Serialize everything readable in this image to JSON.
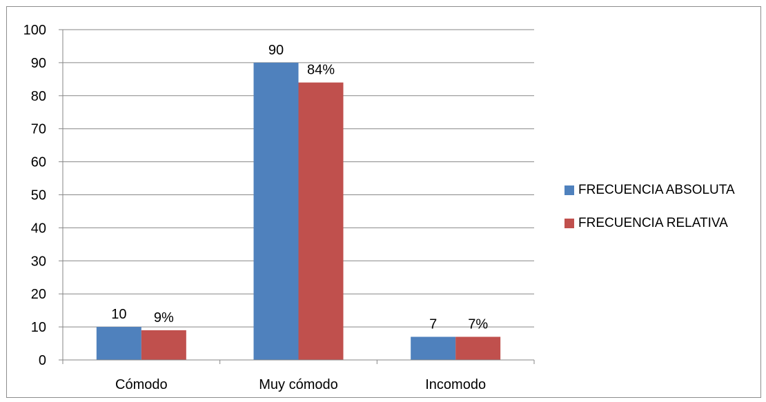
{
  "chart_data": {
    "type": "bar",
    "title": "",
    "xlabel": "",
    "ylabel": "",
    "categories": [
      "Cómodo",
      "Muy cómodo",
      "Incomodo"
    ],
    "series": [
      {
        "name": "FRECUENCIA ABSOLUTA",
        "values": [
          10,
          90,
          7
        ],
        "labels": [
          "10",
          "90",
          "7"
        ],
        "color": "#4f81bd"
      },
      {
        "name": "FRECUENCIA RELATIVA",
        "values": [
          9,
          84,
          7
        ],
        "labels": [
          "9%",
          "84%",
          "7%"
        ],
        "color": "#c0504d"
      }
    ],
    "ylim": [
      0,
      100
    ],
    "yticks": [
      0,
      10,
      20,
      30,
      40,
      50,
      60,
      70,
      80,
      90,
      100
    ],
    "grid": true,
    "legend_position": "right"
  }
}
